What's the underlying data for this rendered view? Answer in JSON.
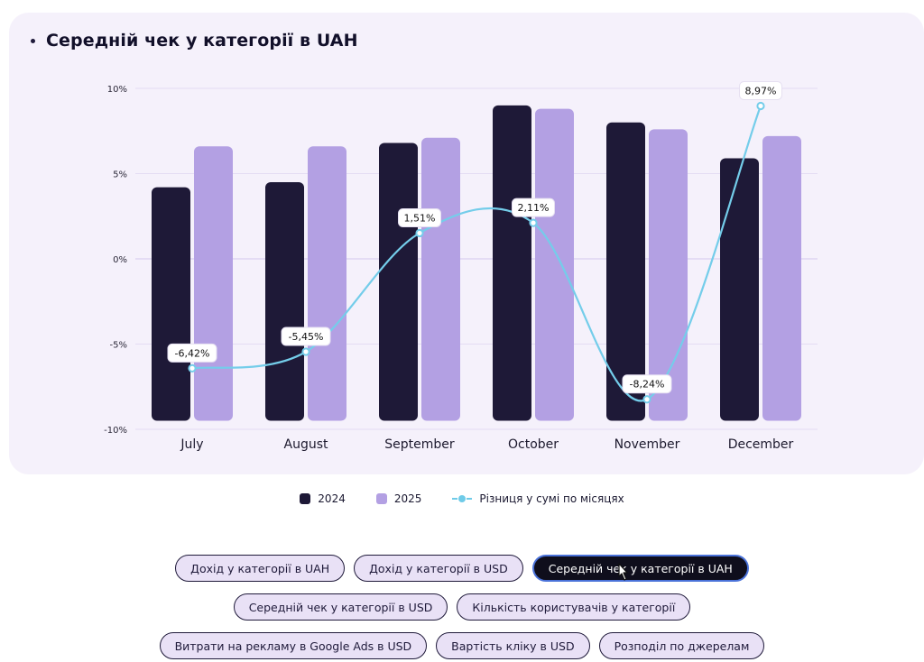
{
  "chart": {
    "title": "Середній чек у категорії в UAH"
  },
  "chart_data": {
    "type": "bar",
    "title": "Середній чек у категорії в UAH",
    "categories": [
      "July",
      "August",
      "September",
      "October",
      "November",
      "December"
    ],
    "series": [
      {
        "name": "2024",
        "kind": "bar",
        "values": [
          4.2,
          4.5,
          6.8,
          9.0,
          8.0,
          5.9
        ]
      },
      {
        "name": "2025",
        "kind": "bar",
        "values": [
          6.6,
          6.6,
          7.1,
          8.8,
          7.6,
          7.2
        ]
      },
      {
        "name": "Різниця у сумі по місяцях",
        "kind": "line",
        "values": [
          -6.42,
          -5.45,
          1.51,
          2.11,
          -8.24,
          8.97
        ],
        "labels": [
          "-6,42%",
          "-5,45%",
          "1,51%",
          "2,11%",
          "-8,24%",
          "8,97%"
        ]
      }
    ],
    "yticks": [
      "10%",
      "5%",
      "0%",
      "-5%",
      "-10%"
    ],
    "ytick_values": [
      10,
      5,
      0,
      -5,
      -10
    ],
    "ylim": [
      -10,
      10
    ],
    "bar_base": -9.5,
    "grid": true,
    "legend_position": "bottom-center",
    "colors": {
      "2024": "#1e1937",
      "2025": "#b3a0e3",
      "line": "#74cdea"
    }
  },
  "legend": {
    "items": [
      {
        "label": "2024"
      },
      {
        "label": "2025"
      },
      {
        "label": "Різниця у сумі по місяцях"
      }
    ]
  },
  "buttons": {
    "row1": [
      "Дохід у категорії в UAH",
      "Дохід у категорії в USD",
      "Середній чек у категорії в UAH"
    ],
    "row2": [
      "Середній чек у категорії в USD",
      "Кількість користувачів у категорії"
    ],
    "row3": [
      "Витрати на рекламу в Google Ads в USD",
      "Вартість кліку в USD",
      "Розподіл по джерелам"
    ]
  }
}
